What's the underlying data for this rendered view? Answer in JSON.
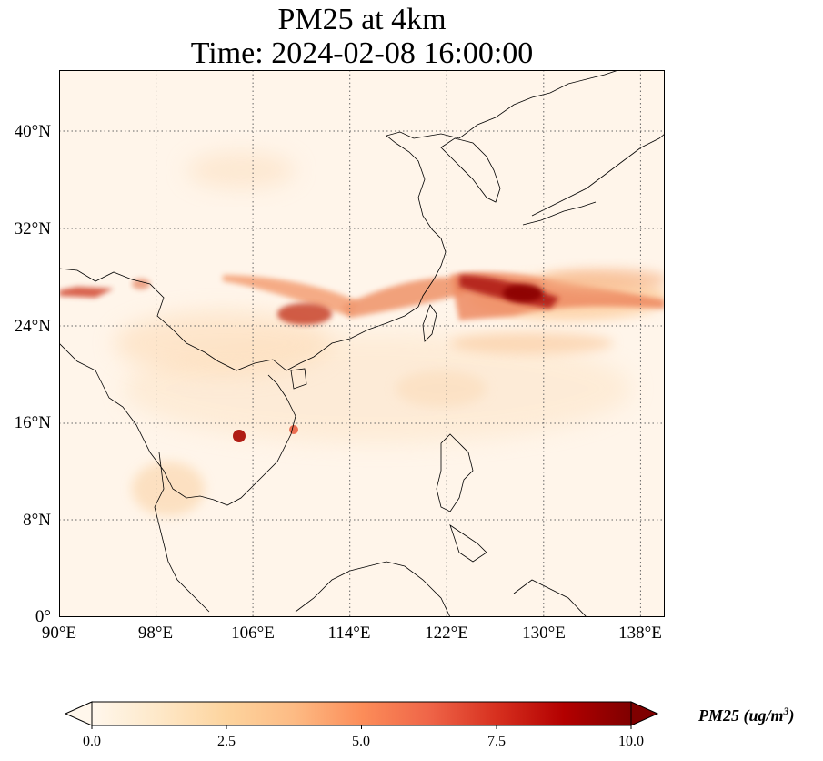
{
  "title": {
    "line1": "PM25 at 4km",
    "line2": "Time: 2024-02-08 16:00:00"
  },
  "map": {
    "lon_range": [
      90,
      140
    ],
    "lat_range": [
      0,
      45
    ],
    "lon_ticks": [
      "90°E",
      "98°E",
      "106°E",
      "114°E",
      "122°E",
      "130°E",
      "138°E"
    ],
    "lat_ticks": [
      "0°",
      "8°N",
      "16°N",
      "24°N",
      "32°N",
      "40°N"
    ],
    "gridlines": true,
    "colormap": "OrRd",
    "background_color": "#fff5ea",
    "high_color": "#8b0000"
  },
  "colorbar": {
    "ticks": [
      "0.0",
      "2.5",
      "5.0",
      "7.5",
      "10.0"
    ],
    "range": [
      0,
      10
    ],
    "extend": "both",
    "label": "PM25 (ug/m",
    "label_exponent": "3",
    "label_close": ")"
  }
}
